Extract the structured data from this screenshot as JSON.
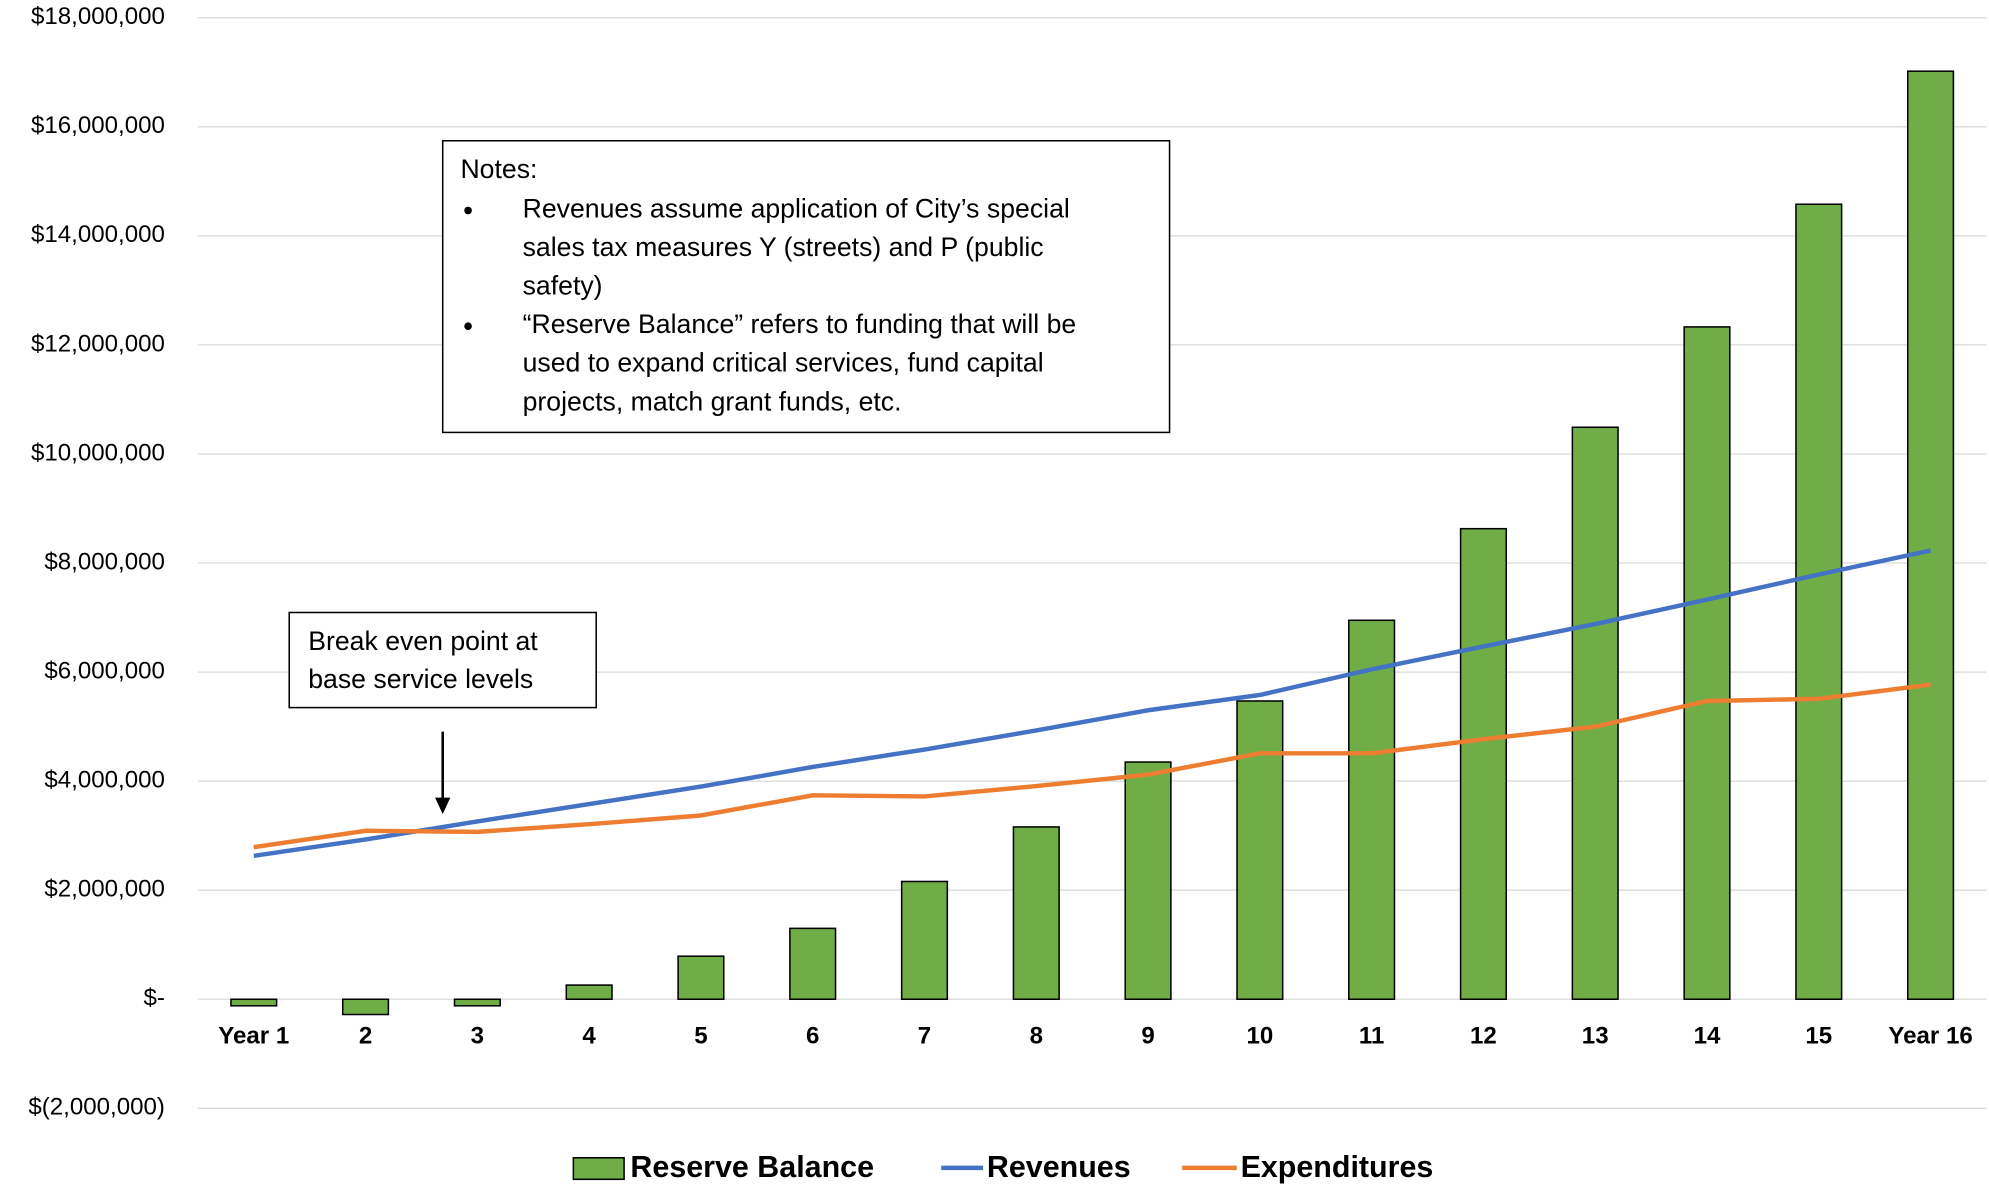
{
  "chart_data": {
    "type": "bar-line",
    "categories": [
      "Year 1",
      "2",
      "3",
      "4",
      "5",
      "6",
      "7",
      "8",
      "9",
      "10",
      "11",
      "12",
      "13",
      "14",
      "15",
      "Year 16"
    ],
    "series": [
      {
        "name": "Reserve Balance",
        "type": "bar",
        "color": "#70ad47",
        "values": [
          -120000,
          -280000,
          -120000,
          260000,
          790000,
          1300000,
          2160000,
          3160000,
          4350000,
          5470000,
          6950000,
          8630000,
          10490000,
          12330000,
          14580000,
          17020000
        ]
      },
      {
        "name": "Revenues",
        "type": "line",
        "color": "#4472c4",
        "values": [
          2630000,
          2930000,
          3260000,
          3580000,
          3900000,
          4260000,
          4580000,
          4930000,
          5300000,
          5580000,
          6050000,
          6470000,
          6880000,
          7330000,
          7790000,
          8230000
        ]
      },
      {
        "name": "Expenditures",
        "type": "line",
        "color": "#ed7d31",
        "values": [
          2790000,
          3090000,
          3070000,
          3210000,
          3370000,
          3740000,
          3720000,
          3910000,
          4120000,
          4510000,
          4510000,
          4770000,
          5000000,
          5470000,
          5510000,
          5770000
        ]
      }
    ],
    "ylim": [
      -2000000,
      18000000
    ],
    "yticks": [
      {
        "value": -2000000,
        "label": "$(2,000,000)"
      },
      {
        "value": 0,
        "label": "$-"
      },
      {
        "value": 2000000,
        "label": "$2,000,000"
      },
      {
        "value": 4000000,
        "label": "$4,000,000"
      },
      {
        "value": 6000000,
        "label": "$6,000,000"
      },
      {
        "value": 8000000,
        "label": "$8,000,000"
      },
      {
        "value": 10000000,
        "label": "$10,000,000"
      },
      {
        "value": 12000000,
        "label": "$12,000,000"
      },
      {
        "value": 14000000,
        "label": "$14,000,000"
      },
      {
        "value": 16000000,
        "label": "$16,000,000"
      },
      {
        "value": 18000000,
        "label": "$18,000,000"
      }
    ],
    "grid": true,
    "legend": "bottom",
    "annotations": {
      "notes": {
        "title": "Notes:",
        "bullets": [
          [
            "Revenues assume application of City’s special",
            "sales tax measures Y (streets) and P (public",
            "safety)"
          ],
          [
            "“Reserve Balance” refers to funding that will be",
            "used to expand critical services, fund capital",
            "projects, match grant funds, etc."
          ]
        ]
      },
      "break_even": [
        "Break even point at",
        "base service levels"
      ]
    }
  }
}
